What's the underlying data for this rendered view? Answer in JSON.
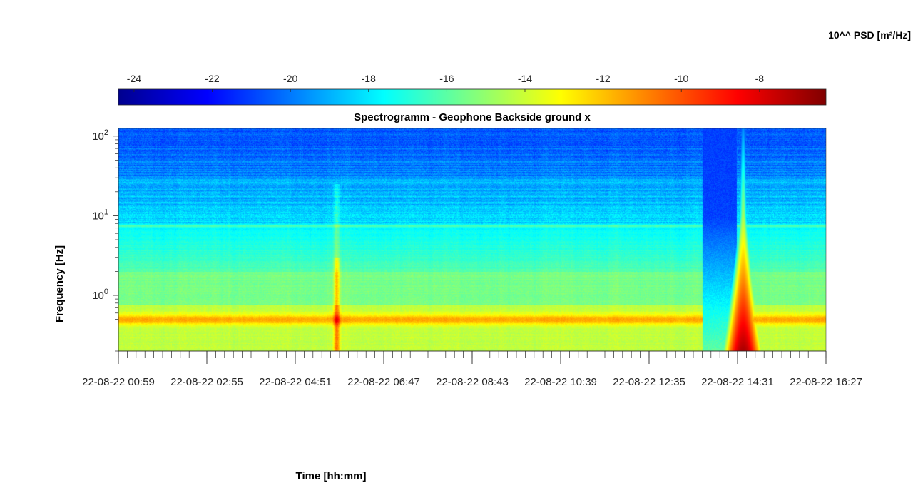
{
  "chart_data": {
    "type": "heatmap",
    "title": "Spectrogramm - Geophone Backside ground x",
    "xlabel": "Time [hh:mm]",
    "ylabel": "Frequency [Hz]",
    "colorbar_label": "10^^ PSD [m²/Hz]",
    "colormap": "jet",
    "colorbar_range": [
      -24.4,
      -6.3
    ],
    "colorbar_ticks": [
      -24,
      -22,
      -20,
      -18,
      -16,
      -14,
      -12,
      -10,
      -8
    ],
    "y_scale": "log",
    "ylim": [
      0.2,
      125
    ],
    "y_ticks": [
      {
        "value": 1,
        "label": "10",
        "exp": "0"
      },
      {
        "value": 10,
        "label": "10",
        "exp": "1"
      },
      {
        "value": 100,
        "label": "10",
        "exp": "2"
      }
    ],
    "xlim": [
      "22-08-22 00:59",
      "22-08-22 16:27"
    ],
    "x_ticks": [
      "22-08-22 00:59",
      "22-08-22 02:55",
      "22-08-22 04:51",
      "22-08-22 06:47",
      "22-08-22 08:43",
      "22-08-22 10:39",
      "22-08-22 12:35",
      "22-08-22 14:31",
      "22-08-22 16:27"
    ],
    "features": [
      {
        "time": "22-08-22 05:45",
        "type": "transient",
        "freq_range": [
          0.3,
          25
        ],
        "peak_value": -12
      },
      {
        "time_range": [
          "22-08-22 13:45",
          "22-08-22 14:30"
        ],
        "type": "quiet",
        "value": -21
      },
      {
        "time": "22-08-22 14:38",
        "type": "strong transient",
        "freq_range": [
          0.2,
          125
        ],
        "peak_value": -7
      },
      {
        "freq": 7.5,
        "type": "stationary line",
        "value": -17
      },
      {
        "freq_range": [
          0.4,
          0.6
        ],
        "type": "microseism band",
        "value": -12
      }
    ]
  }
}
